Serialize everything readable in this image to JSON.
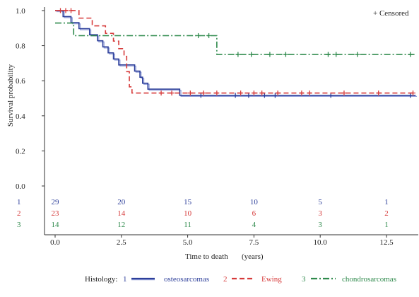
{
  "chart_data": {
    "type": "line",
    "subtype": "kaplan-meier",
    "title": "",
    "xlabel": "Time to death",
    "xlabel_unit": "(years)",
    "ylabel": "Survival probability",
    "xlim": [
      -0.4,
      13.7
    ],
    "ylim": [
      0.0,
      1.02
    ],
    "x_ticks": [
      "0.0",
      "2.5",
      "5.0",
      "7.5",
      "10.0",
      "12.5"
    ],
    "x_tick_values": [
      0,
      2.5,
      5,
      7.5,
      10,
      12.5
    ],
    "y_ticks": [
      "0.0",
      "0.2",
      "0.4",
      "0.6",
      "0.8",
      "1.0"
    ],
    "y_tick_values": [
      0,
      0.2,
      0.4,
      0.6,
      0.8,
      1.0
    ],
    "grid": false,
    "censored_note": "+ Censored",
    "legend": {
      "title": "Histology:",
      "placement": "bottom"
    },
    "series": [
      {
        "id": "1",
        "name": "osteosarcomas",
        "color": "#2d3f9a",
        "fill_color": "#9aa6dd",
        "dash": "solid",
        "steps": [
          [
            0,
            1.0
          ],
          [
            0.3,
            0.966
          ],
          [
            0.6,
            0.931
          ],
          [
            0.9,
            0.897
          ],
          [
            1.3,
            0.862
          ],
          [
            1.6,
            0.828
          ],
          [
            1.8,
            0.793
          ],
          [
            2.0,
            0.759
          ],
          [
            2.2,
            0.724
          ],
          [
            2.4,
            0.69
          ],
          [
            3.0,
            0.655
          ],
          [
            3.2,
            0.62
          ],
          [
            3.3,
            0.586
          ],
          [
            3.5,
            0.552
          ],
          [
            4.7,
            0.517
          ],
          [
            13.6,
            0.517
          ]
        ],
        "censored_x": [
          5.5,
          6.8,
          7.3,
          7.9,
          8.3,
          10.4,
          13.4
        ],
        "at_risk": [
          "29",
          "20",
          "15",
          "10",
          "5",
          "1"
        ]
      },
      {
        "id": "2",
        "name": "Ewing",
        "color": "#d63a3a",
        "dash": "dashed",
        "steps": [
          [
            0,
            1.0
          ],
          [
            0.9,
            0.957
          ],
          [
            1.4,
            0.913
          ],
          [
            1.9,
            0.87
          ],
          [
            2.2,
            0.826
          ],
          [
            2.4,
            0.783
          ],
          [
            2.6,
            0.739
          ],
          [
            2.7,
            0.652
          ],
          [
            2.8,
            0.565
          ],
          [
            2.9,
            0.53
          ],
          [
            13.6,
            0.53
          ]
        ],
        "censored_x": [
          0.2,
          0.4,
          0.6,
          4.0,
          4.4,
          5.1,
          5.6,
          6.1,
          7.0,
          7.5,
          7.8,
          8.4,
          9.3,
          9.6,
          10.9,
          12.2,
          13.5
        ],
        "at_risk": [
          "23",
          "14",
          "10",
          "6",
          "3",
          "2"
        ]
      },
      {
        "id": "3",
        "name": "chondrosarcomas",
        "color": "#2f8a4c",
        "dash": "dashdot",
        "steps": [
          [
            0,
            0.929
          ],
          [
            0.7,
            0.857
          ],
          [
            6.1,
            0.75
          ],
          [
            13.6,
            0.75
          ]
        ],
        "censored_x": [
          5.4,
          5.8,
          6.9,
          7.4,
          8.1,
          8.7,
          10.3,
          10.6,
          11.4,
          13.4
        ],
        "at_risk": [
          "14",
          "12",
          "11",
          "4",
          "3",
          "1"
        ]
      }
    ],
    "at_risk_times": [
      0,
      2.5,
      5,
      7.5,
      10,
      12.5
    ],
    "at_risk_row_labels": [
      "1",
      "2",
      "3"
    ]
  }
}
